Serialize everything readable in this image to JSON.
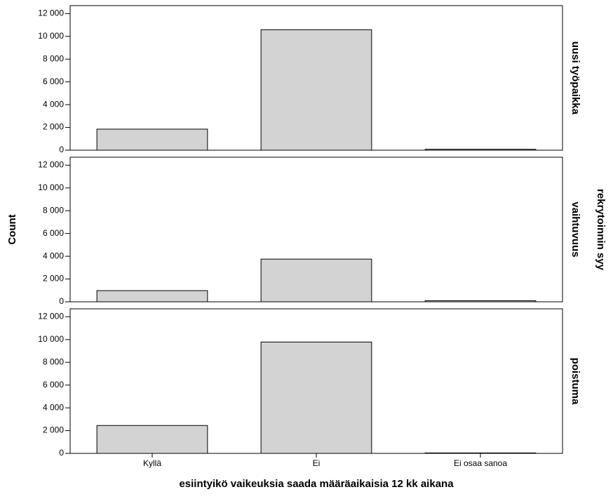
{
  "chart_data": {
    "type": "bar",
    "x_label": "esiintyikö vaikeuksia saada määräaikaisia 12 kk aikana",
    "y_label": "Count",
    "facet_label": "rekrytoinnin syy",
    "categories": [
      "Kyllä",
      "Ei",
      "Ei osaa sanoa"
    ],
    "color": "#d3d3d3",
    "ylim": [
      0,
      12700
    ],
    "yticks": [
      0,
      {
        "value": 2000,
        "label": "2 000"
      },
      {
        "value": 4000,
        "label": "4 000"
      },
      {
        "value": 6000,
        "label": "6 000"
      },
      {
        "value": 8000,
        "label": "8 000"
      },
      {
        "value": 10000,
        "label": "10 000"
      },
      {
        "value": 12000,
        "label": "12 000"
      }
    ],
    "panels": [
      {
        "name": "uusi työpaikka",
        "values": [
          1850,
          10580,
          80
        ]
      },
      {
        "name": "vaihtuvuus",
        "values": [
          980,
          3750,
          100
        ]
      },
      {
        "name": "poistuma",
        "values": [
          2450,
          9780,
          40
        ]
      }
    ]
  }
}
